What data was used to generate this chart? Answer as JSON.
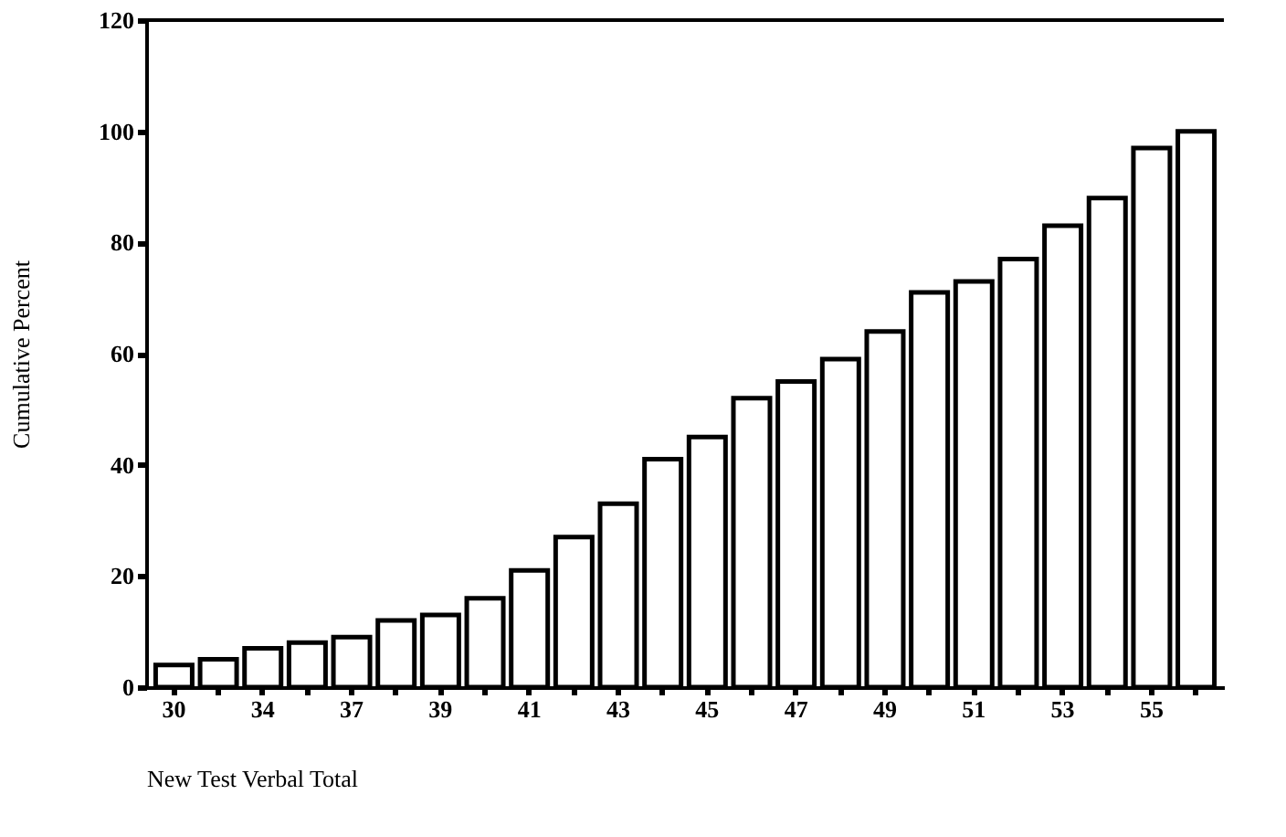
{
  "chart_data": {
    "type": "bar",
    "xlabel": "New Test Verbal Total",
    "ylabel": "Cumulative Percent",
    "categories": [
      "30",
      null,
      "34",
      null,
      "37",
      null,
      "39",
      null,
      "41",
      null,
      "43",
      null,
      "45",
      null,
      "47",
      null,
      "49",
      null,
      "51",
      null,
      "53",
      null,
      "55",
      null
    ],
    "values": [
      4,
      5,
      7,
      8,
      9,
      12,
      13,
      16,
      21,
      27,
      33,
      41,
      45,
      52,
      55,
      59,
      64,
      71,
      73,
      77,
      83,
      88,
      97,
      100
    ],
    "color": "#ffffff",
    "ylim": [
      0,
      120
    ],
    "yticks": [
      0,
      20,
      40,
      60,
      80,
      100,
      120
    ],
    "grid": false
  }
}
